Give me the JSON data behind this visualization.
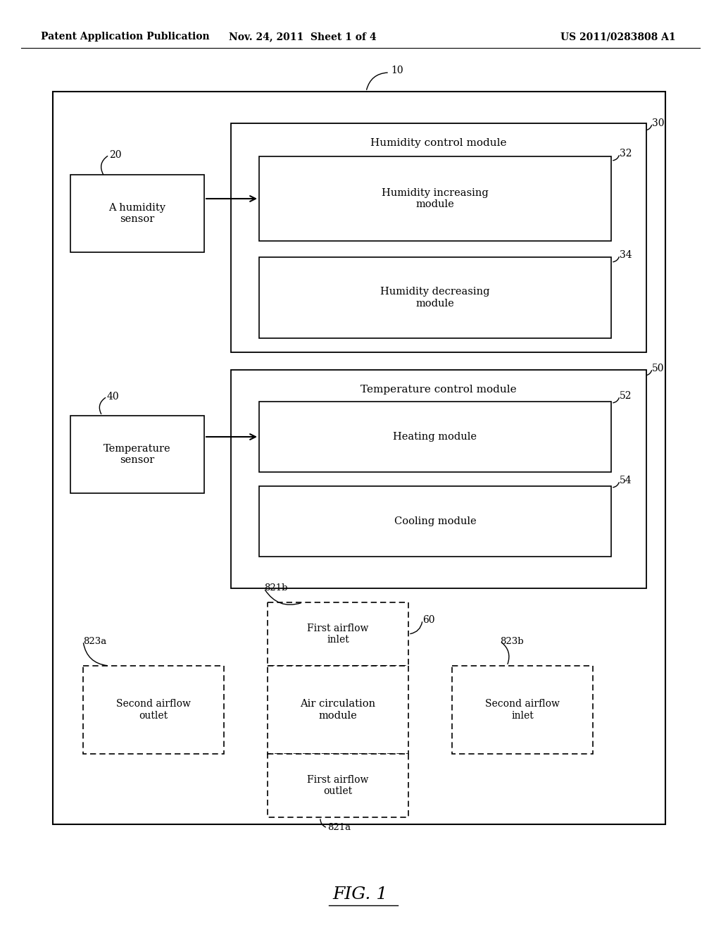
{
  "bg_color": "#ffffff",
  "header_left": "Patent Application Publication",
  "header_mid": "Nov. 24, 2011  Sheet 1 of 4",
  "header_right": "US 2011/0283808 A1",
  "fig_label": "FIG. 1"
}
